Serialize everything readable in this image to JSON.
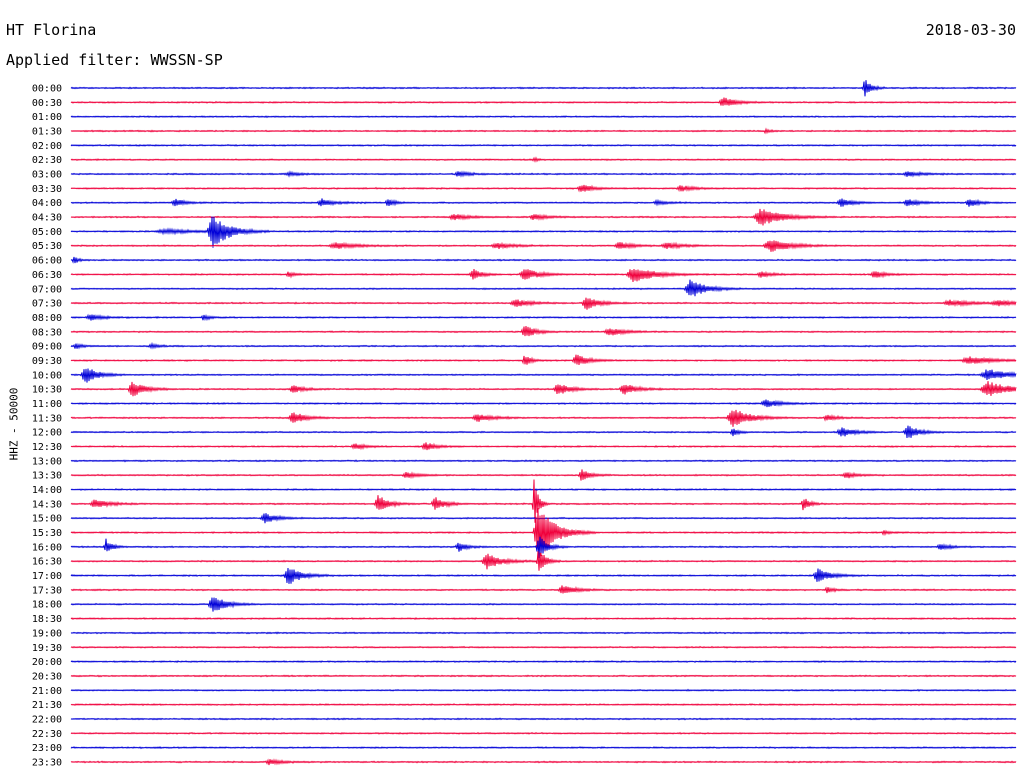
{
  "header": {
    "station": "HT Florina",
    "date": "2018-03-30",
    "filter_label": "Applied filter: WWSSN-SP"
  },
  "chart_data": {
    "type": "line",
    "title": "HT Florina",
    "ylabel": "HHZ - 50000",
    "colors": [
      "#0000d8",
      "#f0003c"
    ],
    "rows": [
      {
        "label": "00:00",
        "events": [
          {
            "x": 0.84,
            "amp": 9,
            "w": 0.006
          }
        ]
      },
      {
        "label": "00:30",
        "events": [
          {
            "x": 0.69,
            "amp": 5,
            "w": 0.012
          }
        ]
      },
      {
        "label": "01:00",
        "events": []
      },
      {
        "label": "01:30",
        "events": [
          {
            "x": 0.735,
            "amp": 2,
            "w": 0.004
          }
        ]
      },
      {
        "label": "02:00",
        "events": []
      },
      {
        "label": "02:30",
        "events": [
          {
            "x": 0.49,
            "amp": 2,
            "w": 0.004
          }
        ]
      },
      {
        "label": "03:00",
        "events": [
          {
            "x": 0.23,
            "amp": 2,
            "w": 0.01
          },
          {
            "x": 0.41,
            "amp": 3,
            "w": 0.01
          },
          {
            "x": 0.885,
            "amp": 3,
            "w": 0.012
          }
        ]
      },
      {
        "label": "03:30",
        "events": [
          {
            "x": 0.54,
            "amp": 4,
            "w": 0.012
          },
          {
            "x": 0.645,
            "amp": 3,
            "w": 0.012
          }
        ]
      },
      {
        "label": "04:00",
        "events": [
          {
            "x": 0.11,
            "amp": 4,
            "w": 0.01
          },
          {
            "x": 0.265,
            "amp": 4,
            "w": 0.012
          },
          {
            "x": 0.335,
            "amp": 5,
            "w": 0.006
          },
          {
            "x": 0.62,
            "amp": 2,
            "w": 0.01
          },
          {
            "x": 0.815,
            "amp": 4,
            "w": 0.012
          },
          {
            "x": 0.885,
            "amp": 4,
            "w": 0.01
          },
          {
            "x": 0.95,
            "amp": 4,
            "w": 0.01
          }
        ]
      },
      {
        "label": "04:30",
        "events": [
          {
            "x": 0.405,
            "amp": 3,
            "w": 0.014
          },
          {
            "x": 0.49,
            "amp": 3,
            "w": 0.012
          },
          {
            "x": 0.73,
            "amp": 9,
            "w": 0.02
          }
        ]
      },
      {
        "label": "05:00",
        "events": [
          {
            "x": 0.15,
            "amp": 17,
            "w": 0.015
          },
          {
            "x": 0.1,
            "amp": 2,
            "w": 0.03
          }
        ]
      },
      {
        "label": "05:30",
        "events": [
          {
            "x": 0.28,
            "amp": 3,
            "w": 0.02
          },
          {
            "x": 0.45,
            "amp": 3,
            "w": 0.015
          },
          {
            "x": 0.58,
            "amp": 4,
            "w": 0.012
          },
          {
            "x": 0.63,
            "amp": 3,
            "w": 0.015
          },
          {
            "x": 0.74,
            "amp": 6,
            "w": 0.02
          }
        ]
      },
      {
        "label": "06:00",
        "events": [
          {
            "x": 0.003,
            "amp": 4,
            "w": 0.004
          }
        ]
      },
      {
        "label": "06:30",
        "events": [
          {
            "x": 0.23,
            "amp": 3,
            "w": 0.006
          },
          {
            "x": 0.425,
            "amp": 6,
            "w": 0.008
          },
          {
            "x": 0.48,
            "amp": 6,
            "w": 0.014
          },
          {
            "x": 0.595,
            "amp": 8,
            "w": 0.02
          },
          {
            "x": 0.73,
            "amp": 3,
            "w": 0.01
          },
          {
            "x": 0.85,
            "amp": 4,
            "w": 0.01
          }
        ]
      },
      {
        "label": "07:00",
        "events": [
          {
            "x": 0.655,
            "amp": 10,
            "w": 0.015
          }
        ]
      },
      {
        "label": "07:30",
        "events": [
          {
            "x": 0.47,
            "amp": 4,
            "w": 0.014
          },
          {
            "x": 0.545,
            "amp": 7,
            "w": 0.012
          },
          {
            "x": 0.93,
            "amp": 3,
            "w": 0.02
          },
          {
            "x": 0.98,
            "amp": 3,
            "w": 0.015
          }
        ]
      },
      {
        "label": "08:00",
        "events": [
          {
            "x": 0.02,
            "amp": 3,
            "w": 0.012
          },
          {
            "x": 0.14,
            "amp": 3,
            "w": 0.006
          }
        ]
      },
      {
        "label": "08:30",
        "events": [
          {
            "x": 0.48,
            "amp": 7,
            "w": 0.01
          },
          {
            "x": 0.57,
            "amp": 4,
            "w": 0.014
          }
        ]
      },
      {
        "label": "09:00",
        "events": [
          {
            "x": 0.005,
            "amp": 3,
            "w": 0.006
          },
          {
            "x": 0.085,
            "amp": 2,
            "w": 0.008
          }
        ]
      },
      {
        "label": "09:30",
        "events": [
          {
            "x": 0.48,
            "amp": 6,
            "w": 0.006
          },
          {
            "x": 0.535,
            "amp": 6,
            "w": 0.012
          },
          {
            "x": 0.95,
            "amp": 4,
            "w": 0.02
          }
        ]
      },
      {
        "label": "10:00",
        "events": [
          {
            "x": 0.015,
            "amp": 9,
            "w": 0.012
          },
          {
            "x": 0.97,
            "amp": 6,
            "w": 0.02
          }
        ]
      },
      {
        "label": "10:30",
        "events": [
          {
            "x": 0.065,
            "amp": 8,
            "w": 0.012
          },
          {
            "x": 0.235,
            "amp": 4,
            "w": 0.01
          },
          {
            "x": 0.515,
            "amp": 6,
            "w": 0.012
          },
          {
            "x": 0.585,
            "amp": 6,
            "w": 0.012
          },
          {
            "x": 0.97,
            "amp": 8,
            "w": 0.02
          }
        ]
      },
      {
        "label": "11:00",
        "events": [
          {
            "x": 0.735,
            "amp": 4,
            "w": 0.014
          }
        ]
      },
      {
        "label": "11:30",
        "events": [
          {
            "x": 0.235,
            "amp": 6,
            "w": 0.012
          },
          {
            "x": 0.43,
            "amp": 4,
            "w": 0.014
          },
          {
            "x": 0.7,
            "amp": 10,
            "w": 0.016
          },
          {
            "x": 0.8,
            "amp": 3,
            "w": 0.01
          }
        ]
      },
      {
        "label": "12:00",
        "events": [
          {
            "x": 0.7,
            "amp": 4,
            "w": 0.006
          },
          {
            "x": 0.815,
            "amp": 5,
            "w": 0.012
          },
          {
            "x": 0.885,
            "amp": 8,
            "w": 0.01
          }
        ]
      },
      {
        "label": "12:30",
        "events": [
          {
            "x": 0.3,
            "amp": 3,
            "w": 0.01
          },
          {
            "x": 0.375,
            "amp": 4,
            "w": 0.01
          }
        ]
      },
      {
        "label": "13:00",
        "events": []
      },
      {
        "label": "13:30",
        "events": [
          {
            "x": 0.355,
            "amp": 3,
            "w": 0.012
          },
          {
            "x": 0.54,
            "amp": 6,
            "w": 0.008
          },
          {
            "x": 0.82,
            "amp": 3,
            "w": 0.01
          }
        ]
      },
      {
        "label": "14:00",
        "events": []
      },
      {
        "label": "14:30",
        "events": [
          {
            "x": 0.025,
            "amp": 4,
            "w": 0.015
          },
          {
            "x": 0.325,
            "amp": 9,
            "w": 0.01
          },
          {
            "x": 0.385,
            "amp": 7,
            "w": 0.01
          },
          {
            "x": 0.49,
            "amp": 25,
            "w": 0.004
          },
          {
            "x": 0.775,
            "amp": 7,
            "w": 0.006
          }
        ]
      },
      {
        "label": "15:00",
        "events": [
          {
            "x": 0.205,
            "amp": 5,
            "w": 0.012
          }
        ]
      },
      {
        "label": "15:30",
        "events": [
          {
            "x": 0.495,
            "amp": 30,
            "w": 0.015
          },
          {
            "x": 0.86,
            "amp": 2,
            "w": 0.006
          }
        ]
      },
      {
        "label": "16:00",
        "events": [
          {
            "x": 0.037,
            "amp": 8,
            "w": 0.006
          },
          {
            "x": 0.41,
            "amp": 5,
            "w": 0.008
          },
          {
            "x": 0.495,
            "amp": 12,
            "w": 0.008
          },
          {
            "x": 0.92,
            "amp": 3,
            "w": 0.01
          }
        ]
      },
      {
        "label": "16:30",
        "events": [
          {
            "x": 0.44,
            "amp": 8,
            "w": 0.014
          },
          {
            "x": 0.495,
            "amp": 15,
            "w": 0.006
          }
        ]
      },
      {
        "label": "17:00",
        "events": [
          {
            "x": 0.23,
            "amp": 10,
            "w": 0.012
          },
          {
            "x": 0.79,
            "amp": 7,
            "w": 0.012
          }
        ]
      },
      {
        "label": "17:30",
        "events": [
          {
            "x": 0.52,
            "amp": 5,
            "w": 0.012
          },
          {
            "x": 0.8,
            "amp": 3,
            "w": 0.006
          }
        ]
      },
      {
        "label": "18:00",
        "events": [
          {
            "x": 0.15,
            "amp": 10,
            "w": 0.012
          }
        ]
      },
      {
        "label": "18:30",
        "events": []
      },
      {
        "label": "19:00",
        "events": []
      },
      {
        "label": "19:30",
        "events": []
      },
      {
        "label": "20:00",
        "events": []
      },
      {
        "label": "20:30",
        "events": []
      },
      {
        "label": "21:00",
        "events": []
      },
      {
        "label": "21:30",
        "events": []
      },
      {
        "label": "22:00",
        "events": []
      },
      {
        "label": "22:30",
        "events": []
      },
      {
        "label": "23:00",
        "events": []
      },
      {
        "label": "23:30",
        "events": [
          {
            "x": 0.21,
            "amp": 3,
            "w": 0.012
          }
        ]
      }
    ]
  }
}
